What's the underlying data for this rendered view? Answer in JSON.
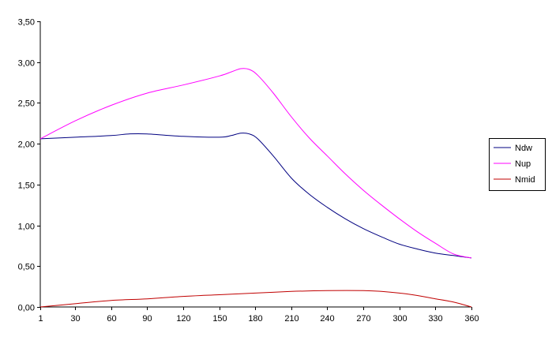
{
  "chart_data": {
    "type": "line",
    "title": "",
    "xlabel": "",
    "ylabel": "",
    "x_ticks": [
      1,
      30,
      60,
      90,
      120,
      150,
      180,
      210,
      240,
      270,
      300,
      330,
      360
    ],
    "x_tick_labels": [
      "1",
      "30",
      "60",
      "90",
      "120",
      "150",
      "180",
      "210",
      "240",
      "270",
      "300",
      "330",
      "360"
    ],
    "xlim": [
      1,
      360
    ],
    "y_ticks": [
      0,
      0.5,
      1.0,
      1.5,
      2.0,
      2.5,
      3.0,
      3.5
    ],
    "y_tick_labels": [
      "0,00",
      "0,50",
      "1,00",
      "1,50",
      "2,00",
      "2,50",
      "3,00",
      "3,50"
    ],
    "ylim": [
      0,
      3.5
    ],
    "grid": false,
    "legend_position": "right",
    "series": [
      {
        "name": "Ndw",
        "color": "#000080",
        "points": [
          [
            1,
            2.06
          ],
          [
            30,
            2.08
          ],
          [
            60,
            2.1
          ],
          [
            75,
            2.12
          ],
          [
            90,
            2.12
          ],
          [
            120,
            2.09
          ],
          [
            150,
            2.08
          ],
          [
            160,
            2.1
          ],
          [
            168,
            2.13
          ],
          [
            175,
            2.12
          ],
          [
            182,
            2.06
          ],
          [
            195,
            1.85
          ],
          [
            210,
            1.58
          ],
          [
            225,
            1.38
          ],
          [
            240,
            1.22
          ],
          [
            255,
            1.08
          ],
          [
            270,
            0.96
          ],
          [
            285,
            0.86
          ],
          [
            300,
            0.77
          ],
          [
            315,
            0.71
          ],
          [
            330,
            0.66
          ],
          [
            345,
            0.63
          ],
          [
            360,
            0.6
          ]
        ]
      },
      {
        "name": "Nup",
        "color": "#ff00ff",
        "points": [
          [
            1,
            2.06
          ],
          [
            30,
            2.28
          ],
          [
            60,
            2.47
          ],
          [
            90,
            2.62
          ],
          [
            120,
            2.72
          ],
          [
            150,
            2.83
          ],
          [
            160,
            2.88
          ],
          [
            168,
            2.92
          ],
          [
            175,
            2.91
          ],
          [
            182,
            2.84
          ],
          [
            195,
            2.62
          ],
          [
            210,
            2.33
          ],
          [
            225,
            2.07
          ],
          [
            240,
            1.85
          ],
          [
            255,
            1.63
          ],
          [
            270,
            1.43
          ],
          [
            285,
            1.25
          ],
          [
            300,
            1.08
          ],
          [
            315,
            0.92
          ],
          [
            330,
            0.78
          ],
          [
            345,
            0.65
          ],
          [
            360,
            0.6
          ]
        ]
      },
      {
        "name": "Nmid",
        "color": "#c00000",
        "points": [
          [
            1,
            0.0
          ],
          [
            30,
            0.04
          ],
          [
            60,
            0.08
          ],
          [
            90,
            0.1
          ],
          [
            120,
            0.13
          ],
          [
            150,
            0.15
          ],
          [
            180,
            0.17
          ],
          [
            210,
            0.19
          ],
          [
            240,
            0.2
          ],
          [
            270,
            0.2
          ],
          [
            285,
            0.19
          ],
          [
            300,
            0.17
          ],
          [
            315,
            0.14
          ],
          [
            330,
            0.1
          ],
          [
            345,
            0.06
          ],
          [
            360,
            0.0
          ]
        ]
      }
    ]
  }
}
